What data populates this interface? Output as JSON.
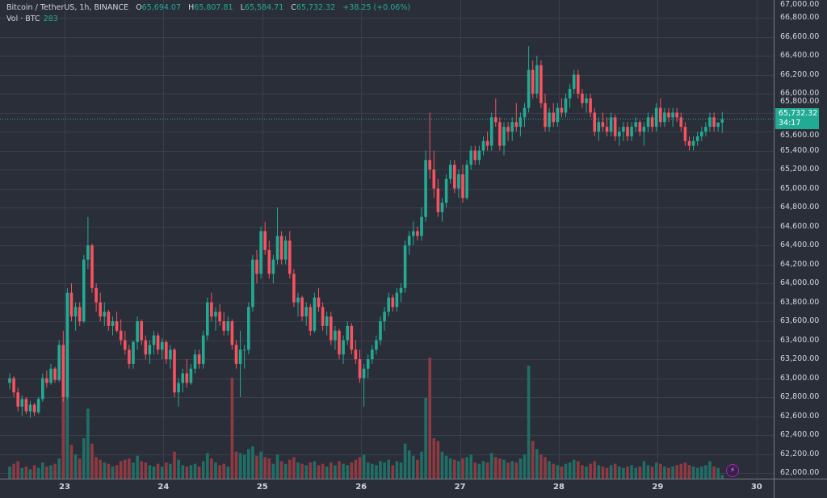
{
  "legend": {
    "symbol": "Bitcoin / TetherUS, 1h, BINANCE",
    "o_label": "O",
    "o": "65,694.07",
    "h_label": "H",
    "h": "65,807.81",
    "l_label": "L",
    "l": "65,584.71",
    "c_label": "C",
    "c": "65,732.32",
    "change": "+38.25 (+0.06%)",
    "vol_label": "Vol · BTC",
    "vol": "283"
  },
  "price_tag": {
    "price": "65,732.32",
    "countdown": "34:17"
  },
  "colors": {
    "background": "#2a2e39",
    "grid": "#3b3f4b",
    "up": "#22ab94",
    "down": "#f7525f",
    "up_vol": "#1f6f66",
    "down_vol": "#8f3a40"
  },
  "icons": {
    "alert": "lightning-icon"
  },
  "chart_data": {
    "type": "candlestick",
    "interval": "1h",
    "ylim": [
      62000,
      67000
    ],
    "grid": true,
    "y_ticks": [
      "67,000.00",
      "66,800.00",
      "66,600.00",
      "66,400.00",
      "66,200.00",
      "66,000.00",
      "65,800.00",
      "65,600.00",
      "65,400.00",
      "65,200.00",
      "65,000.00",
      "64,800.00",
      "64,600.00",
      "64,400.00",
      "64,200.00",
      "64,000.00",
      "63,800.00",
      "63,600.00",
      "63,400.00",
      "63,200.00",
      "63,000.00",
      "62,800.00",
      "62,600.00",
      "62,400.00",
      "62,200.00",
      "62,000.00"
    ],
    "x_ticks": [
      "23",
      "24",
      "25",
      "26",
      "27",
      "28",
      "29",
      "30"
    ],
    "candles_columns": [
      "open",
      "high",
      "low",
      "close",
      "volume"
    ],
    "candles": [
      [
        62950,
        63050,
        62880,
        63000,
        900
      ],
      [
        63000,
        63020,
        62800,
        62850,
        1100
      ],
      [
        62850,
        62900,
        62650,
        62700,
        1300
      ],
      [
        62700,
        62820,
        62600,
        62780,
        800
      ],
      [
        62780,
        62800,
        62620,
        62650,
        900
      ],
      [
        62650,
        62760,
        62580,
        62720,
        700
      ],
      [
        62720,
        62740,
        62600,
        62640,
        1000
      ],
      [
        62640,
        62800,
        62620,
        62780,
        800
      ],
      [
        62780,
        63050,
        62750,
        63000,
        1200
      ],
      [
        63000,
        63080,
        62900,
        62950,
        900
      ],
      [
        62950,
        63150,
        62930,
        63100,
        1000
      ],
      [
        63100,
        63120,
        62950,
        62980,
        1100
      ],
      [
        62980,
        63400,
        62960,
        63350,
        1500
      ],
      [
        63350,
        63500,
        62750,
        62800,
        6800
      ],
      [
        62800,
        63950,
        62780,
        63900,
        7200
      ],
      [
        63900,
        64000,
        63600,
        63650,
        2500
      ],
      [
        63650,
        63800,
        63500,
        63750,
        1800
      ],
      [
        63750,
        63800,
        63550,
        63600,
        1500
      ],
      [
        63600,
        64300,
        63580,
        64250,
        3000
      ],
      [
        64250,
        64700,
        64150,
        64400,
        5200
      ],
      [
        64400,
        64420,
        63900,
        63950,
        2600
      ],
      [
        63950,
        64000,
        63700,
        63800,
        1600
      ],
      [
        63800,
        63900,
        63600,
        63650,
        1400
      ],
      [
        63650,
        63800,
        63550,
        63700,
        1200
      ],
      [
        63700,
        63720,
        63500,
        63550,
        1100
      ],
      [
        63550,
        63650,
        63450,
        63600,
        900
      ],
      [
        63600,
        63700,
        63480,
        63500,
        1000
      ],
      [
        63500,
        63620,
        63350,
        63400,
        1300
      ],
      [
        63400,
        63500,
        63250,
        63300,
        1400
      ],
      [
        63300,
        63350,
        63100,
        63150,
        1500
      ],
      [
        63150,
        63400,
        63100,
        63380,
        1200
      ],
      [
        63380,
        63650,
        63300,
        63600,
        1700
      ],
      [
        63600,
        63620,
        63350,
        63400,
        1300
      ],
      [
        63400,
        63450,
        63200,
        63250,
        1200
      ],
      [
        63250,
        63400,
        63150,
        63350,
        1000
      ],
      [
        63350,
        63500,
        63250,
        63450,
        900
      ],
      [
        63450,
        63480,
        63250,
        63300,
        1100
      ],
      [
        63300,
        63420,
        63200,
        63380,
        900
      ],
      [
        63380,
        63400,
        63150,
        63200,
        1200
      ],
      [
        63200,
        63350,
        63100,
        63300,
        1100
      ],
      [
        63300,
        63320,
        62800,
        62850,
        2000
      ],
      [
        62850,
        63000,
        62700,
        62950,
        1400
      ],
      [
        62950,
        63100,
        62850,
        63050,
        1000
      ],
      [
        63050,
        63200,
        62900,
        62950,
        900
      ],
      [
        62950,
        63150,
        62930,
        63100,
        1000
      ],
      [
        63100,
        63300,
        63050,
        63250,
        1100
      ],
      [
        63250,
        63300,
        63100,
        63150,
        900
      ],
      [
        63150,
        63500,
        63100,
        63450,
        1300
      ],
      [
        63450,
        63850,
        63400,
        63800,
        1900
      ],
      [
        63800,
        63900,
        63600,
        63650,
        1500
      ],
      [
        63650,
        63750,
        63500,
        63700,
        1200
      ],
      [
        63700,
        63780,
        63550,
        63600,
        1000
      ],
      [
        63600,
        63700,
        63450,
        63500,
        1100
      ],
      [
        63500,
        63650,
        63450,
        63600,
        900
      ],
      [
        63600,
        63620,
        63300,
        63350,
        7500
      ],
      [
        63350,
        63400,
        63100,
        63150,
        2000
      ],
      [
        63150,
        63500,
        62800,
        63300,
        1900
      ],
      [
        63300,
        63350,
        63100,
        63300,
        1800
      ],
      [
        63300,
        63800,
        63250,
        63750,
        2200
      ],
      [
        63750,
        64300,
        63700,
        64250,
        2400
      ],
      [
        64250,
        64350,
        64000,
        64100,
        1700
      ],
      [
        64100,
        64600,
        64050,
        64550,
        2000
      ],
      [
        64550,
        64650,
        64300,
        64350,
        1600
      ],
      [
        64350,
        64450,
        64050,
        64100,
        1500
      ],
      [
        64100,
        64300,
        64000,
        64250,
        1100
      ],
      [
        64250,
        64800,
        64200,
        64500,
        1800
      ],
      [
        64500,
        64550,
        64200,
        64250,
        1300
      ],
      [
        64250,
        64500,
        64200,
        64450,
        1100
      ],
      [
        64450,
        64550,
        64050,
        64100,
        1400
      ],
      [
        64100,
        64150,
        63750,
        63800,
        1600
      ],
      [
        63800,
        63900,
        63650,
        63850,
        1200
      ],
      [
        63850,
        63870,
        63600,
        63650,
        1100
      ],
      [
        63650,
        63800,
        63550,
        63750,
        1000
      ],
      [
        63750,
        63780,
        63450,
        63500,
        1200
      ],
      [
        63500,
        63900,
        63480,
        63850,
        1300
      ],
      [
        63850,
        63950,
        63700,
        63750,
        1000
      ],
      [
        63750,
        63800,
        63500,
        63550,
        1100
      ],
      [
        63550,
        63700,
        63450,
        63650,
        900
      ],
      [
        63650,
        63700,
        63350,
        63400,
        1200
      ],
      [
        63400,
        63550,
        63300,
        63500,
        1000
      ],
      [
        63500,
        63520,
        63200,
        63250,
        1300
      ],
      [
        63250,
        63450,
        63150,
        63400,
        1100
      ],
      [
        63400,
        63600,
        63350,
        63550,
        1000
      ],
      [
        63550,
        63580,
        63250,
        63300,
        1200
      ],
      [
        63300,
        63400,
        63150,
        63200,
        1400
      ],
      [
        63200,
        63300,
        62950,
        63000,
        1600
      ],
      [
        63000,
        63150,
        62700,
        63100,
        1800
      ],
      [
        63100,
        63250,
        63000,
        63200,
        1200
      ],
      [
        63200,
        63350,
        63150,
        63300,
        1100
      ],
      [
        63300,
        63450,
        63250,
        63400,
        1000
      ],
      [
        63400,
        63650,
        63350,
        63600,
        1300
      ],
      [
        63600,
        63750,
        63500,
        63700,
        1200
      ],
      [
        63700,
        63900,
        63650,
        63850,
        1400
      ],
      [
        63850,
        63880,
        63700,
        63750,
        1000
      ],
      [
        63750,
        63950,
        63700,
        63900,
        1300
      ],
      [
        63900,
        64000,
        63800,
        63950,
        1200
      ],
      [
        63950,
        64450,
        63900,
        64400,
        2600
      ],
      [
        64400,
        64550,
        64300,
        64500,
        2100
      ],
      [
        64500,
        64650,
        64400,
        64550,
        1700
      ],
      [
        64550,
        64600,
        64450,
        64500,
        1400
      ],
      [
        64500,
        64800,
        64450,
        64700,
        2000
      ],
      [
        64700,
        65400,
        64650,
        65300,
        6000
      ],
      [
        65300,
        65800,
        65100,
        65200,
        9000
      ],
      [
        65200,
        65400,
        64900,
        65000,
        3000
      ],
      [
        65000,
        65100,
        64700,
        64750,
        2800
      ],
      [
        64750,
        64900,
        64650,
        64850,
        2000
      ],
      [
        64850,
        65150,
        64800,
        65100,
        1700
      ],
      [
        65100,
        65300,
        65050,
        65250,
        1500
      ],
      [
        65250,
        65300,
        64950,
        65000,
        1400
      ],
      [
        65000,
        65200,
        64900,
        65150,
        1300
      ],
      [
        65150,
        65250,
        64850,
        64900,
        1500
      ],
      [
        64900,
        65300,
        64880,
        65250,
        1600
      ],
      [
        65250,
        65450,
        65200,
        65400,
        1800
      ],
      [
        65400,
        65450,
        65250,
        65300,
        1200
      ],
      [
        65300,
        65450,
        65250,
        65400,
        1100
      ],
      [
        65400,
        65550,
        65350,
        65500,
        1300
      ],
      [
        65500,
        65600,
        65400,
        65450,
        1200
      ],
      [
        65450,
        65800,
        65400,
        65750,
        1900
      ],
      [
        65750,
        65950,
        65650,
        65700,
        1600
      ],
      [
        65700,
        65750,
        65400,
        65450,
        1500
      ],
      [
        65450,
        65700,
        65350,
        65650,
        1400
      ],
      [
        65650,
        65700,
        65500,
        65600,
        1200
      ],
      [
        65600,
        65750,
        65500,
        65700,
        1300
      ],
      [
        65700,
        65900,
        65600,
        65650,
        1200
      ],
      [
        65650,
        65800,
        65550,
        65750,
        1500
      ],
      [
        65750,
        65900,
        65650,
        65850,
        1800
      ],
      [
        65850,
        66500,
        65800,
        66250,
        8400
      ],
      [
        66250,
        66350,
        65950,
        66000,
        2800
      ],
      [
        66000,
        66400,
        65950,
        66300,
        2200
      ],
      [
        66300,
        66350,
        65850,
        65900,
        1800
      ],
      [
        65900,
        66000,
        65600,
        65650,
        1600
      ],
      [
        65650,
        65850,
        65600,
        65800,
        1300
      ],
      [
        65800,
        65900,
        65650,
        65700,
        1100
      ],
      [
        65700,
        65900,
        65650,
        65850,
        1000
      ],
      [
        65850,
        65950,
        65750,
        65800,
        900
      ],
      [
        65800,
        66000,
        65750,
        65950,
        1100
      ],
      [
        65950,
        66100,
        65850,
        66050,
        1200
      ],
      [
        66050,
        66250,
        66000,
        66200,
        1400
      ],
      [
        66200,
        66250,
        65950,
        66000,
        1300
      ],
      [
        66000,
        66050,
        65850,
        65900,
        1000
      ],
      [
        65900,
        66000,
        65800,
        65950,
        900
      ],
      [
        65950,
        66000,
        65750,
        65800,
        1100
      ],
      [
        65800,
        65850,
        65550,
        65600,
        1300
      ],
      [
        65600,
        65750,
        65500,
        65700,
        1000
      ],
      [
        65700,
        65800,
        65600,
        65650,
        900
      ],
      [
        65650,
        65750,
        65550,
        65600,
        800
      ],
      [
        65600,
        65800,
        65550,
        65750,
        1000
      ],
      [
        65750,
        65780,
        65500,
        65550,
        1100
      ],
      [
        65550,
        65650,
        65450,
        65600,
        900
      ],
      [
        65600,
        65700,
        65500,
        65650,
        800
      ],
      [
        65650,
        65700,
        65500,
        65550,
        900
      ],
      [
        65550,
        65700,
        65500,
        65650,
        1000
      ],
      [
        65650,
        65750,
        65600,
        65700,
        800
      ],
      [
        65700,
        65720,
        65550,
        65600,
        900
      ],
      [
        65600,
        65700,
        65450,
        65650,
        1300
      ],
      [
        65650,
        65800,
        65600,
        65750,
        1000
      ],
      [
        65750,
        65780,
        65600,
        65650,
        900
      ],
      [
        65650,
        65900,
        65600,
        65850,
        1200
      ],
      [
        65850,
        65950,
        65650,
        65700,
        1100
      ],
      [
        65700,
        65850,
        65650,
        65800,
        900
      ],
      [
        65800,
        65850,
        65700,
        65750,
        800
      ],
      [
        65750,
        65850,
        65650,
        65800,
        900
      ],
      [
        65800,
        65850,
        65700,
        65750,
        1000
      ],
      [
        65750,
        65800,
        65600,
        65650,
        1100
      ],
      [
        65650,
        65700,
        65450,
        65500,
        1200
      ],
      [
        65500,
        65550,
        65400,
        65450,
        1000
      ],
      [
        65450,
        65550,
        65400,
        65500,
        900
      ],
      [
        65500,
        65600,
        65450,
        65550,
        800
      ],
      [
        65550,
        65650,
        65500,
        65600,
        900
      ],
      [
        65600,
        65700,
        65550,
        65650,
        1000
      ],
      [
        65650,
        65800,
        65600,
        65750,
        1300
      ],
      [
        65750,
        65800,
        65600,
        65650,
        900
      ],
      [
        65650,
        65700,
        65600,
        65694,
        800
      ],
      [
        65694.07,
        65807.81,
        65584.71,
        65732.32,
        283
      ]
    ]
  }
}
